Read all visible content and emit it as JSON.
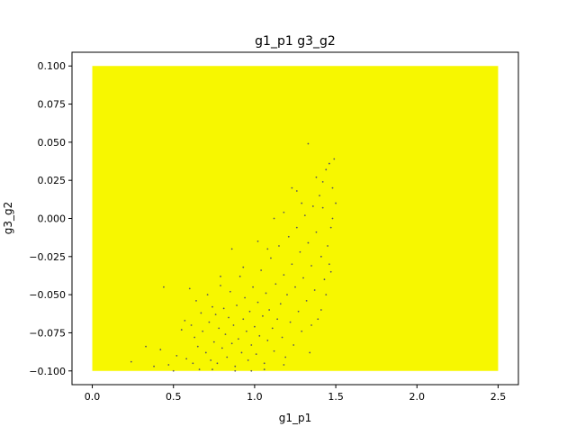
{
  "chart_data": {
    "type": "scatter",
    "title": "g1_p1  g3_g2",
    "xlabel": "g1_p1",
    "ylabel": "g3_g2",
    "xlim": [
      -0.125,
      2.625
    ],
    "ylim": [
      -0.109,
      0.109
    ],
    "fill_region": {
      "x": [
        0.0,
        2.5
      ],
      "y": [
        -0.1,
        0.1
      ]
    },
    "x_ticks": [
      0.0,
      0.5,
      1.0,
      1.5,
      2.0,
      2.5
    ],
    "x_tick_labels": [
      "0.0",
      "0.5",
      "1.0",
      "1.5",
      "2.0",
      "2.5"
    ],
    "y_ticks": [
      -0.1,
      -0.075,
      -0.05,
      -0.025,
      0.0,
      0.025,
      0.05,
      0.075,
      0.1
    ],
    "y_tick_labels": [
      "−0.100",
      "−0.075",
      "−0.050",
      "−0.025",
      "0.000",
      "0.025",
      "0.050",
      "0.075",
      "0.100"
    ],
    "grid": false,
    "colors": {
      "fill": "#f7f700",
      "dots": "#5a5a5a"
    },
    "points": [
      [
        0.24,
        -0.094
      ],
      [
        0.33,
        -0.084
      ],
      [
        0.38,
        -0.097
      ],
      [
        0.42,
        -0.086
      ],
      [
        0.44,
        -0.045
      ],
      [
        0.47,
        -0.096
      ],
      [
        0.5,
        -0.1
      ],
      [
        0.52,
        -0.09
      ],
      [
        0.55,
        -0.073
      ],
      [
        0.57,
        -0.067
      ],
      [
        0.58,
        -0.092
      ],
      [
        0.6,
        -0.046
      ],
      [
        0.61,
        -0.07
      ],
      [
        0.62,
        -0.095
      ],
      [
        0.63,
        -0.078
      ],
      [
        0.64,
        -0.054
      ],
      [
        0.65,
        -0.084
      ],
      [
        0.66,
        -0.099
      ],
      [
        0.67,
        -0.062
      ],
      [
        0.68,
        -0.074
      ],
      [
        0.7,
        -0.088
      ],
      [
        0.71,
        -0.05
      ],
      [
        0.72,
        -0.068
      ],
      [
        0.73,
        -0.093
      ],
      [
        0.74,
        -0.058
      ],
      [
        0.75,
        -0.081
      ],
      [
        0.76,
        -0.063
      ],
      [
        0.77,
        -0.095
      ],
      [
        0.78,
        -0.072
      ],
      [
        0.79,
        -0.044
      ],
      [
        0.8,
        -0.085
      ],
      [
        0.81,
        -0.059
      ],
      [
        0.82,
        -0.076
      ],
      [
        0.83,
        -0.091
      ],
      [
        0.84,
        -0.065
      ],
      [
        0.85,
        -0.048
      ],
      [
        0.86,
        -0.082
      ],
      [
        0.87,
        -0.07
      ],
      [
        0.88,
        -0.097
      ],
      [
        0.89,
        -0.057
      ],
      [
        0.9,
        -0.079
      ],
      [
        0.91,
        -0.038
      ],
      [
        0.92,
        -0.088
      ],
      [
        0.93,
        -0.066
      ],
      [
        0.94,
        -0.052
      ],
      [
        0.95,
        -0.074
      ],
      [
        0.96,
        -0.093
      ],
      [
        0.97,
        -0.061
      ],
      [
        0.98,
        -0.083
      ],
      [
        0.99,
        -0.045
      ],
      [
        1.0,
        -0.071
      ],
      [
        1.01,
        -0.089
      ],
      [
        1.02,
        -0.055
      ],
      [
        1.03,
        -0.077
      ],
      [
        1.04,
        -0.034
      ],
      [
        1.05,
        -0.064
      ],
      [
        1.06,
        -0.095
      ],
      [
        1.07,
        -0.049
      ],
      [
        1.08,
        -0.08
      ],
      [
        1.09,
        -0.06
      ],
      [
        1.1,
        -0.026
      ],
      [
        1.11,
        -0.072
      ],
      [
        1.12,
        -0.087
      ],
      [
        1.13,
        -0.043
      ],
      [
        1.14,
        -0.066
      ],
      [
        1.15,
        -0.018
      ],
      [
        1.16,
        -0.056
      ],
      [
        1.17,
        -0.078
      ],
      [
        1.18,
        -0.037
      ],
      [
        1.19,
        -0.091
      ],
      [
        1.2,
        -0.05
      ],
      [
        1.21,
        -0.012
      ],
      [
        1.22,
        -0.068
      ],
      [
        1.23,
        -0.03
      ],
      [
        1.24,
        -0.083
      ],
      [
        1.25,
        -0.045
      ],
      [
        1.26,
        -0.006
      ],
      [
        1.27,
        -0.061
      ],
      [
        1.28,
        -0.022
      ],
      [
        1.29,
        -0.074
      ],
      [
        1.3,
        -0.039
      ],
      [
        1.31,
        0.002
      ],
      [
        1.32,
        -0.054
      ],
      [
        1.33,
        -0.016
      ],
      [
        1.34,
        -0.088
      ],
      [
        1.35,
        -0.031
      ],
      [
        1.36,
        0.008
      ],
      [
        1.37,
        -0.047
      ],
      [
        1.38,
        -0.009
      ],
      [
        1.39,
        -0.066
      ],
      [
        1.4,
        0.015
      ],
      [
        1.41,
        -0.025
      ],
      [
        1.42,
        0.024
      ],
      [
        1.43,
        -0.04
      ],
      [
        1.44,
        0.032
      ],
      [
        1.45,
        -0.018
      ],
      [
        1.46,
        0.036
      ],
      [
        1.47,
        -0.006
      ],
      [
        1.48,
        0.02
      ],
      [
        1.49,
        0.039
      ],
      [
        1.33,
        0.049
      ],
      [
        1.23,
        0.02
      ],
      [
        1.12,
        0.0
      ],
      [
        1.08,
        -0.02
      ],
      [
        1.02,
        -0.015
      ],
      [
        0.93,
        -0.032
      ],
      [
        0.86,
        -0.02
      ],
      [
        0.79,
        -0.038
      ],
      [
        1.18,
        0.004
      ],
      [
        1.26,
        0.018
      ],
      [
        1.29,
        0.01
      ],
      [
        1.38,
        0.027
      ],
      [
        1.44,
        -0.05
      ],
      [
        1.41,
        -0.06
      ],
      [
        1.35,
        -0.07
      ],
      [
        1.18,
        -0.096
      ],
      [
        1.06,
        -0.099
      ],
      [
        0.98,
        -0.1
      ],
      [
        0.88,
        -0.1
      ],
      [
        0.74,
        -0.099
      ],
      [
        1.47,
        -0.035
      ],
      [
        1.46,
        -0.03
      ],
      [
        1.48,
        0.0
      ],
      [
        1.5,
        0.01
      ],
      [
        1.42,
        0.007
      ]
    ]
  }
}
